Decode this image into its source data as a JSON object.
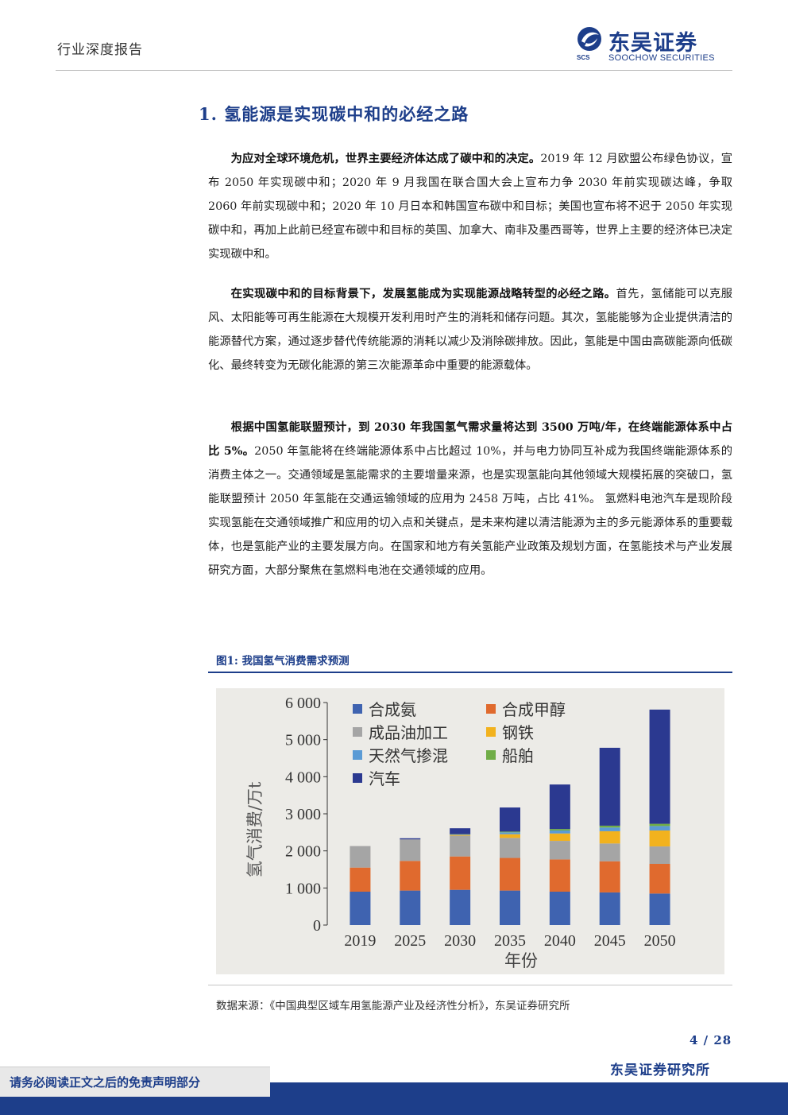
{
  "header": {
    "report_type": "行业深度报告",
    "logo_cn": "东吴证券",
    "logo_en": "SOOCHOW SECURITIES",
    "logo_abbr": "SCS"
  },
  "section": {
    "title": "1.  氢能源是实现碳中和的必经之路"
  },
  "paragraphs": [
    {
      "bold": "为应对全球环境危机，世界主要经济体达成了碳中和的决定。",
      "text": "2019 年 12 月欧盟公布绿色协议，宣布 2050 年实现碳中和；2020 年 9 月我国在联合国大会上宣布力争 2030 年前实现碳达峰，争取 2060 年前实现碳中和；2020 年 10 月日本和韩国宣布碳中和目标；美国也宣布将不迟于 2050 年实现碳中和，再加上此前已经宣布碳中和目标的英国、加拿大、南非及墨西哥等，世界上主要的经济体已决定实现碳中和。"
    },
    {
      "bold": "在实现碳中和的目标背景下，发展氢能成为实现能源战略转型的必经之路。",
      "text": "首先，氢储能可以克服风、太阳能等可再生能源在大规模开发利用时产生的消耗和储存问题。其次，氢能能够为企业提供清洁的能源替代方案，通过逐步替代传统能源的消耗以减少及消除碳排放。因此，氢能是中国由高碳能源向低碳化、最终转变为无碳化能源的第三次能源革命中重要的能源载体。"
    },
    {
      "bold": "根据中国氢能联盟预计，到 2030 年我国氢气需求量将达到 3500 万吨/年，在终端能源体系中占比 5%。",
      "text": "2050 年氢能将在终端能源体系中占比超过 10%，并与电力协同互补成为我国终端能源体系的消费主体之一。交通领域是氢能需求的主要增量来源，也是实现氢能向其他领域大规模拓展的突破口，氢能联盟预计 2050 年氢能在交通运输领域的应用为 2458 万吨，占比 41%。 氢燃料电池汽车是现阶段实现氢能在交通领域推广和应用的切入点和关键点，是未来构建以清洁能源为主的多元能源体系的重要载体，也是氢能产业的主要发展方向。在国家和地方有关氢能产业政策及规划方面，在氢能技术与产业发展研究方面，大部分聚焦在氢燃料电池在交通领域的应用。"
    }
  ],
  "figure": {
    "title": "图1:  我国氢气消费需求预测",
    "source": "数据来源：《中国典型区域车用氢能源产业及经济性分析》，东吴证券研究所"
  },
  "chart_data": {
    "type": "bar",
    "stacked": true,
    "categories": [
      "2019",
      "2025",
      "2030",
      "2035",
      "2040",
      "2045",
      "2050"
    ],
    "xlabel": "年份",
    "ylabel": "氢气消费/万t",
    "ylim": [
      0,
      6000
    ],
    "yticks": [
      0,
      1000,
      2000,
      3000,
      4000,
      5000,
      6000
    ],
    "ytick_labels": [
      "0",
      "1 000",
      "2 000",
      "3 000",
      "4 000",
      "5 000",
      "6 000"
    ],
    "grid": false,
    "legend_position": "top-left",
    "series": [
      {
        "name": "合成氨",
        "color": "#3f63b0",
        "values": [
          900,
          930,
          950,
          930,
          900,
          880,
          850
        ]
      },
      {
        "name": "合成甲醇",
        "color": "#e06a2e",
        "values": [
          650,
          800,
          900,
          880,
          870,
          840,
          800
        ]
      },
      {
        "name": "成品油加工",
        "color": "#a5a5a5",
        "values": [
          580,
          580,
          560,
          540,
          500,
          480,
          470
        ]
      },
      {
        "name": "钢铁",
        "color": "#f2b21e",
        "values": [
          0,
          0,
          20,
          100,
          200,
          330,
          430
        ]
      },
      {
        "name": "天然气掺混",
        "color": "#5b9bd5",
        "values": [
          0,
          0,
          10,
          50,
          80,
          100,
          120
        ]
      },
      {
        "name": "船舶",
        "color": "#70ad47",
        "values": [
          0,
          0,
          10,
          20,
          40,
          50,
          60
        ]
      },
      {
        "name": "汽车",
        "color": "#2b3990",
        "values": [
          0,
          30,
          160,
          650,
          1200,
          2100,
          3080
        ]
      }
    ]
  },
  "footer": {
    "page": "4 / 28",
    "disclaimer": "请务必阅读正文之后的免责声明部分",
    "institute": "东吴证券研究所"
  }
}
